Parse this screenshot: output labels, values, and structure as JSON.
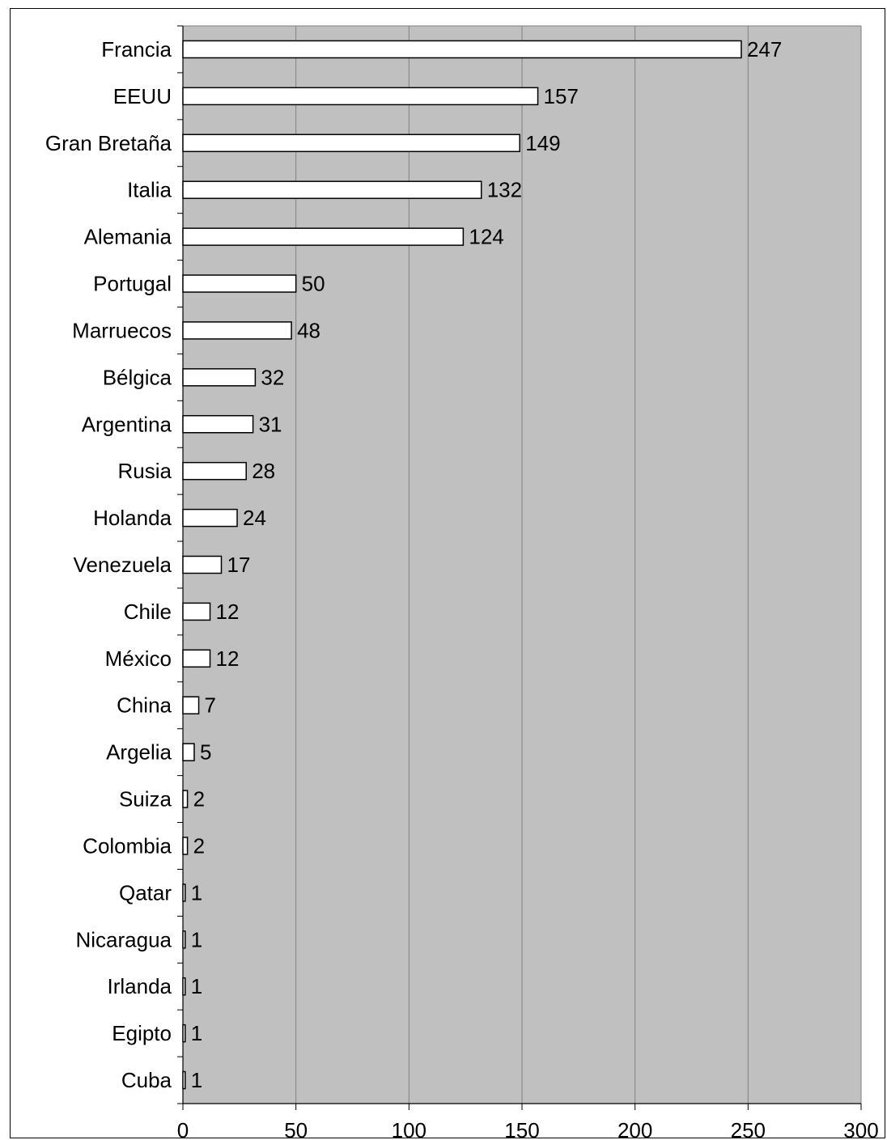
{
  "chart_data": {
    "type": "bar",
    "orientation": "horizontal",
    "categories": [
      "Francia",
      "EEUU",
      "Gran Bretaña",
      "Italia",
      "Alemania",
      "Portugal",
      "Marruecos",
      "Bélgica",
      "Argentina",
      "Rusia",
      "Holanda",
      "Venezuela",
      "Chile",
      "México",
      "China",
      "Argelia",
      "Suiza",
      "Colombia",
      "Qatar",
      "Nicaragua",
      "Irlanda",
      "Egipto",
      "Cuba"
    ],
    "values": [
      247,
      157,
      149,
      132,
      124,
      50,
      48,
      32,
      31,
      28,
      24,
      17,
      12,
      12,
      7,
      5,
      2,
      2,
      1,
      1,
      1,
      1,
      1
    ],
    "xlim": [
      0,
      300
    ],
    "xticks": [
      "0",
      "50",
      "100",
      "150",
      "200",
      "250",
      "300"
    ],
    "grid": "vertical",
    "legend": "none",
    "data_labels": true,
    "colors": {
      "plot_background": "#c0c0c0",
      "bar_fill": "#ffffff",
      "bar_stroke": "#000000",
      "grid": "#808080"
    }
  }
}
